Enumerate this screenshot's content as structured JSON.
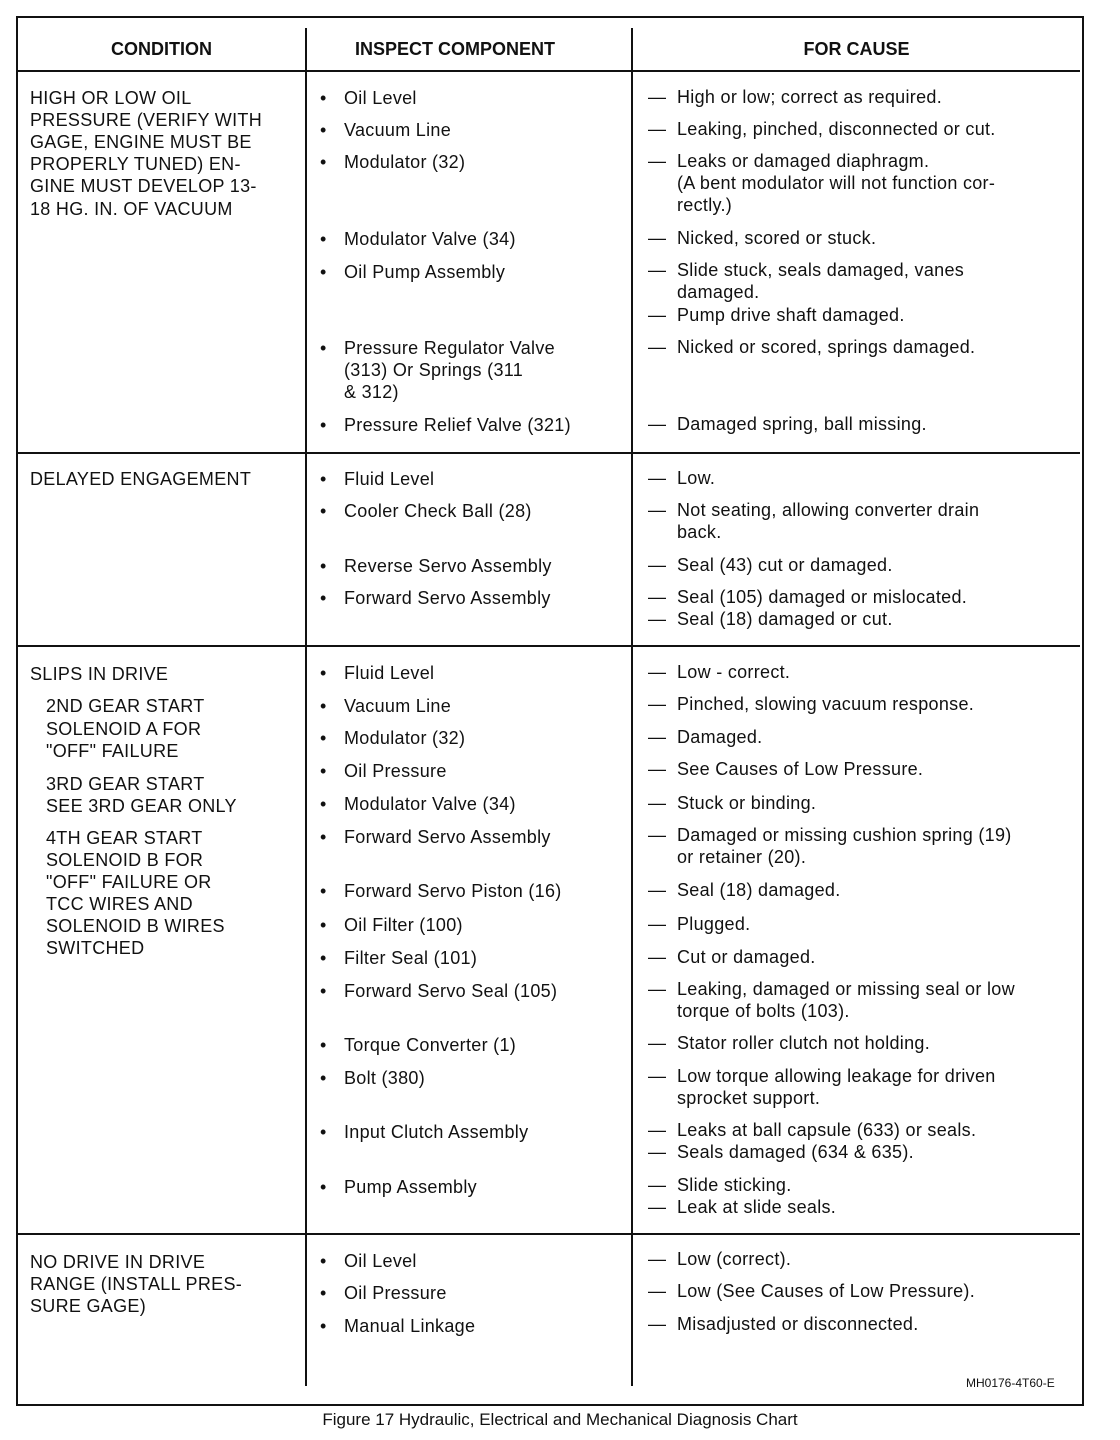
{
  "headers": {
    "condition": "CONDITION",
    "component": "INSPECT COMPONENT",
    "cause": "FOR CAUSE"
  },
  "bullet": "•",
  "dash": "—",
  "sections": [
    {
      "condition": [
        {
          "text": "HIGH OR LOW OIL",
          "indent": false
        },
        {
          "text": "PRESSURE (VERIFY WITH",
          "indent": false
        },
        {
          "text": "GAGE, ENGINE MUST BE",
          "indent": false
        },
        {
          "text": "PROPERLY   TUNED)   EN-",
          "indent": false
        },
        {
          "text": "GINE MUST DEVELOP 13-",
          "indent": false
        },
        {
          "text": "18 HG. IN. OF VACUUM",
          "indent": false
        }
      ],
      "items": [
        {
          "component": [
            "Oil Level"
          ],
          "causes": [
            [
              "High or low; correct as required."
            ]
          ]
        },
        {
          "component": [
            "Vacuum Line"
          ],
          "causes": [
            [
              "Leaking, pinched, disconnected or cut."
            ]
          ]
        },
        {
          "component": [
            "Modulator (32)"
          ],
          "causes": [
            [
              "Leaks or damaged diaphragm.",
              "(A bent modulator will not function cor-",
              "rectly.)"
            ]
          ]
        },
        {
          "component": [
            "Modulator Valve (34)"
          ],
          "causes": [
            [
              "Nicked, scored or stuck."
            ]
          ]
        },
        {
          "component": [
            "Oil Pump Assembly"
          ],
          "causes": [
            [
              "Slide   stuck,   seals   damaged,   vanes",
              "damaged."
            ],
            [
              "Pump drive shaft damaged."
            ]
          ]
        },
        {
          "component": [
            "Pressure  Regulator  Valve",
            "(313) Or Springs (311",
            "& 312)"
          ],
          "causes": [
            [
              "Nicked or scored, springs damaged."
            ]
          ]
        },
        {
          "component": [
            "Pressure Relief Valve (321)"
          ],
          "causes": [
            [
              "Damaged spring, ball missing."
            ]
          ]
        }
      ]
    },
    {
      "condition": [
        {
          "text": "DELAYED ENGAGEMENT",
          "indent": false
        }
      ],
      "items": [
        {
          "component": [
            "Fluid Level"
          ],
          "causes": [
            [
              "Low."
            ]
          ]
        },
        {
          "component": [
            "Cooler Check Ball (28)"
          ],
          "causes": [
            [
              "Not  seating,  allowing  converter  drain",
              "back."
            ]
          ]
        },
        {
          "component": [
            "Reverse Servo Assembly"
          ],
          "causes": [
            [
              "Seal (43) cut or damaged."
            ]
          ]
        },
        {
          "component": [
            "Forward Servo Assembly"
          ],
          "causes": [
            [
              "Seal (105) damaged or mislocated."
            ],
            [
              "Seal (18) damaged or cut."
            ]
          ]
        }
      ]
    },
    {
      "condition": [
        {
          "text": "SLIPS IN DRIVE",
          "indent": false
        },
        {
          "text": "2ND GEAR START",
          "indent": true
        },
        {
          "text": "SOLENOID A FOR",
          "indent": true
        },
        {
          "text": "\"OFF\" FAILURE",
          "indent": true
        },
        {
          "text": "3RD GEAR START",
          "indent": true
        },
        {
          "text": "SEE 3RD GEAR ONLY",
          "indent": true
        },
        {
          "text": "4TH GEAR START",
          "indent": true
        },
        {
          "text": "SOLENOID B FOR",
          "indent": true
        },
        {
          "text": "\"OFF\" FAILURE OR",
          "indent": true
        },
        {
          "text": "TCC WIRES AND",
          "indent": true
        },
        {
          "text": "SOLENOID B WIRES",
          "indent": true
        },
        {
          "text": "SWITCHED",
          "indent": true
        }
      ],
      "items": [
        {
          "component": [
            "Fluid Level"
          ],
          "causes": [
            [
              "Low - correct."
            ]
          ]
        },
        {
          "component": [
            "Vacuum Line"
          ],
          "causes": [
            [
              "Pinched, slowing vacuum response."
            ]
          ]
        },
        {
          "component": [
            "Modulator (32)"
          ],
          "causes": [
            [
              "Damaged."
            ]
          ]
        },
        {
          "component": [
            "Oil Pressure"
          ],
          "causes": [
            [
              "See Causes of Low Pressure."
            ]
          ]
        },
        {
          "component": [
            "Modulator Valve (34)"
          ],
          "causes": [
            [
              "Stuck or binding."
            ]
          ]
        },
        {
          "component": [
            "Forward Servo Assembly"
          ],
          "causes": [
            [
              "Damaged or missing cushion spring (19)",
              "or retainer (20)."
            ]
          ]
        },
        {
          "component": [
            "Forward Servo Piston (16)"
          ],
          "causes": [
            [
              "Seal (18) damaged."
            ]
          ]
        },
        {
          "component": [
            "Oil Filter (100)"
          ],
          "causes": [
            [
              "Plugged."
            ]
          ]
        },
        {
          "component": [
            "Filter Seal (101)"
          ],
          "causes": [
            [
              "Cut or damaged."
            ]
          ]
        },
        {
          "component": [
            "Forward Servo Seal (105)"
          ],
          "causes": [
            [
              "Leaking, damaged or missing seal or low",
              "torque of bolts (103)."
            ]
          ]
        },
        {
          "component": [
            "Torque Converter (1)"
          ],
          "causes": [
            [
              "Stator roller clutch not holding."
            ]
          ]
        },
        {
          "component": [
            "Bolt (380)"
          ],
          "causes": [
            [
              "Low torque allowing leakage for driven",
              "sprocket support."
            ]
          ]
        },
        {
          "component": [
            "Input Clutch Assembly"
          ],
          "causes": [
            [
              "Leaks at ball capsule (633) or seals."
            ],
            [
              "Seals damaged (634 & 635)."
            ]
          ]
        },
        {
          "component": [
            "Pump Assembly"
          ],
          "causes": [
            [
              "Slide sticking."
            ],
            [
              "Leak at slide seals."
            ]
          ]
        }
      ]
    },
    {
      "condition": [
        {
          "text": "NO DRIVE IN DRIVE",
          "indent": false
        },
        {
          "text": "RANGE (INSTALL PRES-",
          "indent": false
        },
        {
          "text": "SURE GAGE)",
          "indent": false
        }
      ],
      "items": [
        {
          "component": [
            "Oil Level"
          ],
          "causes": [
            [
              "Low (correct)."
            ]
          ]
        },
        {
          "component": [
            "Oil Pressure"
          ],
          "causes": [
            [
              "Low (See Causes of Low Pressure)."
            ]
          ]
        },
        {
          "component": [
            "Manual Linkage"
          ],
          "causes": [
            [
              "Misadjusted or disconnected."
            ]
          ]
        }
      ]
    }
  ],
  "figure_code": "MH0176-4T60-E",
  "caption": "Figure 17 Hydraulic, Electrical and Mechanical Diagnosis Chart"
}
